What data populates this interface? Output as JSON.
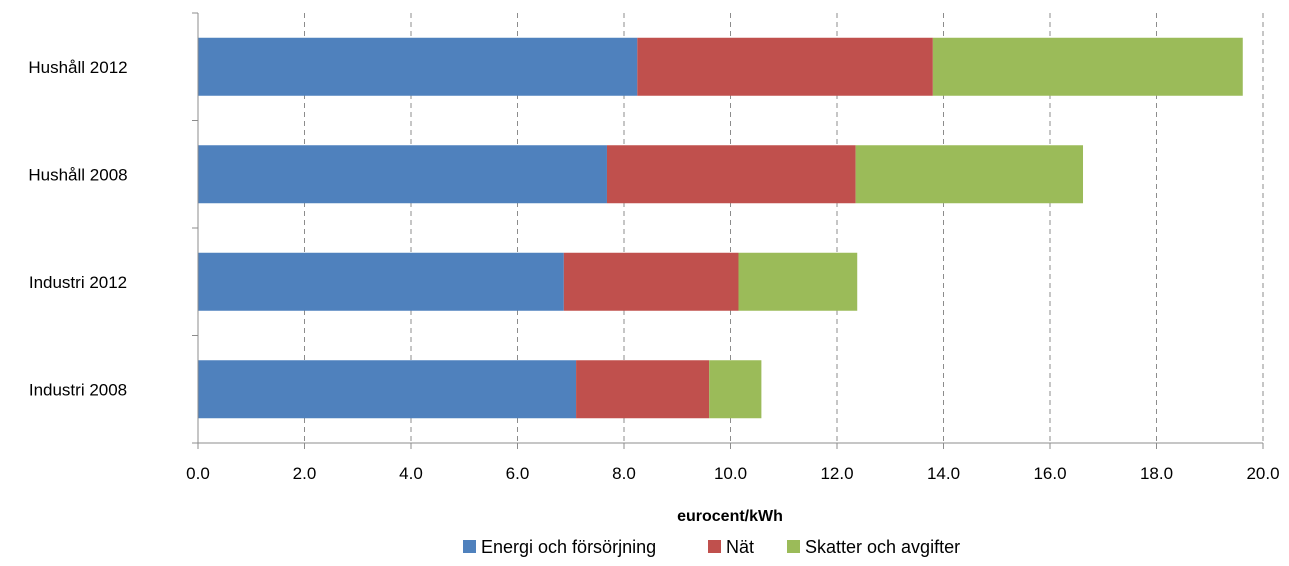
{
  "chart_data": {
    "type": "bar",
    "orientation": "horizontal",
    "stacked": true,
    "categories": [
      "Hushåll 2012",
      "Hushåll 2008",
      "Industri 2012",
      "Industri 2008"
    ],
    "series": [
      {
        "name": "Energi och försörjning",
        "color": "#4F81BD",
        "values": [
          8.25,
          7.68,
          6.87,
          7.1
        ]
      },
      {
        "name": "Nät",
        "color": "#C0504D",
        "values": [
          5.55,
          4.67,
          3.28,
          2.5
        ]
      },
      {
        "name": "Skatter och avgifter",
        "color": "#9BBB59",
        "values": [
          5.82,
          4.27,
          2.23,
          0.98
        ]
      }
    ],
    "xlim": [
      0,
      20
    ],
    "xticks": [
      "0.0",
      "2.0",
      "4.0",
      "6.0",
      "8.0",
      "10.0",
      "12.0",
      "14.0",
      "16.0",
      "18.0",
      "20.0"
    ],
    "xlabel": "eurocent/kWh",
    "ylabel": "",
    "title": "",
    "grid": "vertical-dashed",
    "legend": "bottom"
  }
}
